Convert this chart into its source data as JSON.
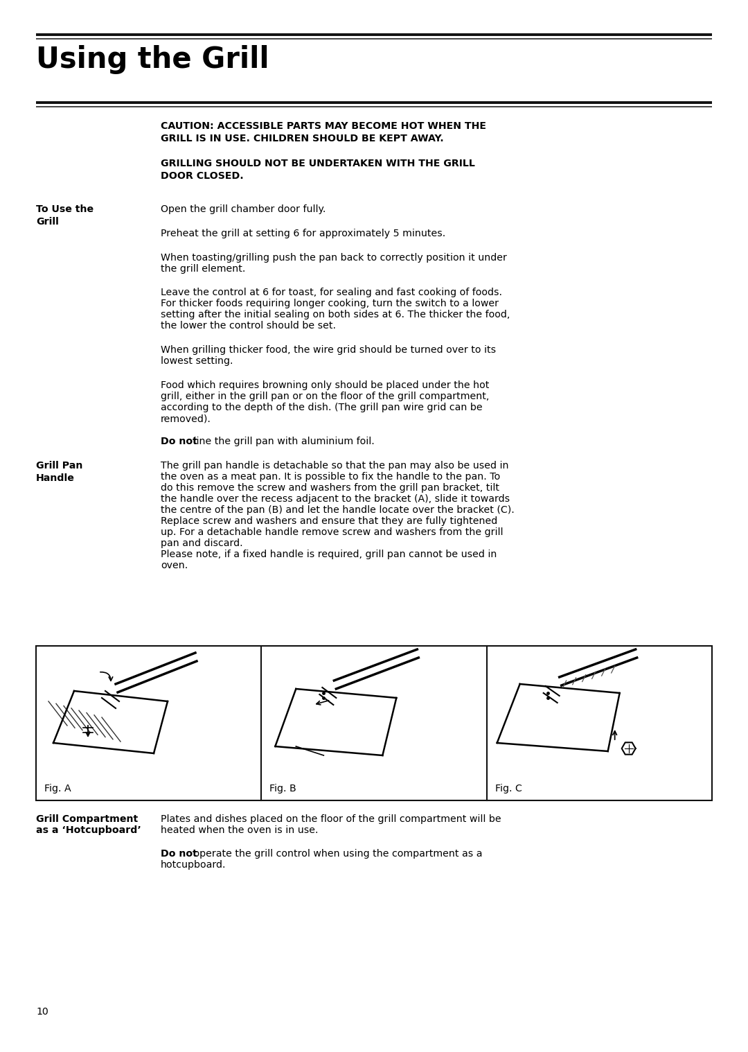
{
  "title": "Using the Grill",
  "bg_color": "#ffffff",
  "text_color": "#000000",
  "caution1_line1": "CAUTION: ACCESSIBLE PARTS MAY BECOME HOT WHEN THE",
  "caution1_line2": "GRILL IS IN USE. CHILDREN SHOULD BE KEPT AWAY.",
  "caution2_line1": "GRILLING SHOULD NOT BE UNDERTAKEN WITH THE GRILL",
  "caution2_line2": "DOOR CLOSED.",
  "s1_lbl1": "To Use the",
  "s1_lbl2": "Grill",
  "p1": "Open the grill chamber door fully.",
  "p2": "Preheat the grill at setting 6 for approximately 5 minutes.",
  "p3a": "When toasting/grilling push the pan back to correctly position it under",
  "p3b": "the grill element.",
  "p4a": "Leave the control at 6 for toast, for sealing and fast cooking of foods.",
  "p4b": "For thicker foods requiring longer cooking, turn the switch to a lower",
  "p4c": "setting after the initial sealing on both sides at 6. The thicker the food,",
  "p4d": "the lower the control should be set.",
  "p5a": "When grilling thicker food, the wire grid should be turned over to its",
  "p5b": "lowest setting.",
  "p6a": "Food which requires browning only should be placed under the hot",
  "p6b": "grill, either in the grill pan or on the floor of the grill compartment,",
  "p6c": "according to the depth of the dish. (The grill pan wire grid can be",
  "p6d": "removed).",
  "p7_bold": "Do not",
  "p7_rest": " line the grill pan with aluminium foil.",
  "s2_lbl1": "Grill Pan",
  "s2_lbl2": "Handle",
  "s2a": "The grill pan handle is detachable so that the pan may also be used in",
  "s2b": "the oven as a meat pan. It is possible to fix the handle to the pan. To",
  "s2c": "do this remove the screw and washers from the grill pan bracket, tilt",
  "s2d": "the handle over the recess adjacent to the bracket (A), slide it towards",
  "s2e": "the centre of the pan (B) and let the handle locate over the bracket (C).",
  "s2f": "Replace screw and washers and ensure that they are fully tightened",
  "s2g": "up. For a detachable handle remove screw and washers from the grill",
  "s2h": "pan and discard.",
  "s2i": "Please note, if a fixed handle is required, grill pan cannot be used in",
  "s2j": "oven.",
  "fig_a": "Fig. A",
  "fig_b": "Fig. B",
  "fig_c": "Fig. C",
  "s3_lbl1": "Grill Compartment",
  "s3_lbl2": "as a ‘Hotcupboard’",
  "s3p1a": "Plates and dishes placed on the floor of the grill compartment will be",
  "s3p1b": "heated when the oven is in use.",
  "s3p2_bold": "Do not",
  "s3p2_rest": " operate the grill control when using the compartment as a",
  "s3p2b": "hotcupboard.",
  "page_number": "10",
  "lm": 52,
  "rm": 1028,
  "cl": 232,
  "ll": 52
}
